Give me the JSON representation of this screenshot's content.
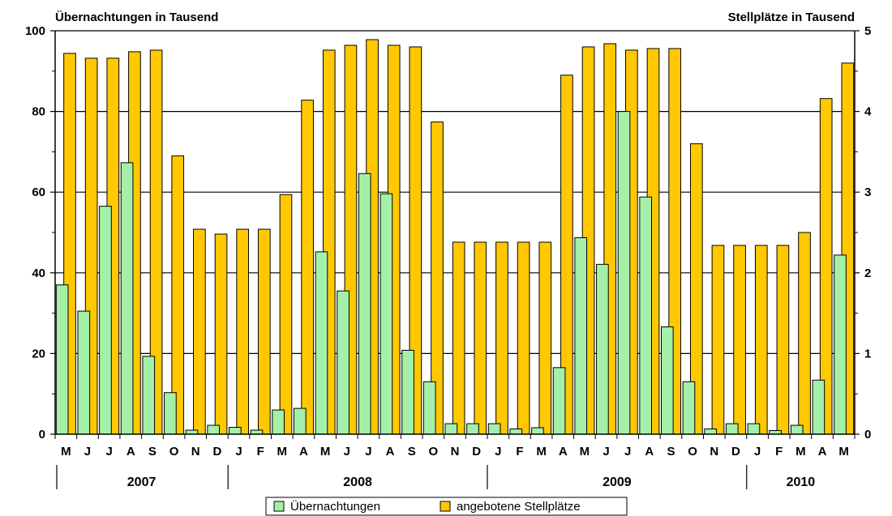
{
  "chart_data": {
    "type": "bar",
    "left_axis_title": "Übernachtungen in Tausend",
    "right_axis_title": "Stellplätze in Tausend",
    "left_ylim": [
      0,
      100
    ],
    "left_ticks": [
      "0",
      "20",
      "40",
      "60",
      "80",
      "100"
    ],
    "right_ylim": [
      0,
      5
    ],
    "right_ticks": [
      "0",
      "1",
      "2",
      "3",
      "4",
      "5"
    ],
    "grid": true,
    "legend_position": "bottom-center",
    "categories": [
      "M",
      "J",
      "J",
      "A",
      "S",
      "O",
      "N",
      "D",
      "J",
      "F",
      "M",
      "A",
      "M",
      "J",
      "J",
      "A",
      "S",
      "O",
      "N",
      "D",
      "J",
      "F",
      "M",
      "A",
      "M",
      "J",
      "J",
      "A",
      "S",
      "O",
      "N",
      "D",
      "J",
      "F",
      "M",
      "A",
      "M"
    ],
    "years": [
      {
        "label": "2007",
        "start": 0,
        "end": 8
      },
      {
        "label": "2008",
        "start": 8,
        "end": 20
      },
      {
        "label": "2009",
        "start": 20,
        "end": 32
      },
      {
        "label": "2010",
        "start": 32,
        "end": 37
      }
    ],
    "series": [
      {
        "name": "Übernachtungen",
        "axis": "left",
        "color": "#a4f0a8",
        "values": [
          37,
          30.5,
          56.5,
          67.3,
          19.3,
          10.3,
          1,
          2.2,
          1.7,
          1,
          6,
          6.4,
          45.2,
          35.5,
          64.6,
          59.6,
          20.8,
          13,
          2.6,
          2.6,
          2.6,
          1.3,
          1.6,
          16.5,
          48.7,
          42.1,
          80,
          58.8,
          26.6,
          13,
          1.3,
          2.6,
          2.6,
          0.9,
          2.2,
          13.4,
          44.4
        ]
      },
      {
        "name": "angebotene Stellplätze",
        "axis": "right",
        "color": "#ffc800",
        "values": [
          4.72,
          4.66,
          4.66,
          4.74,
          4.76,
          3.45,
          2.54,
          2.48,
          2.54,
          2.54,
          2.97,
          4.14,
          4.76,
          4.82,
          4.89,
          4.82,
          4.8,
          3.87,
          2.38,
          2.38,
          2.38,
          2.38,
          2.38,
          4.45,
          4.8,
          4.84,
          4.76,
          4.78,
          4.78,
          3.6,
          2.34,
          2.34,
          2.34,
          2.34,
          2.5,
          4.16,
          4.6
        ]
      }
    ]
  }
}
